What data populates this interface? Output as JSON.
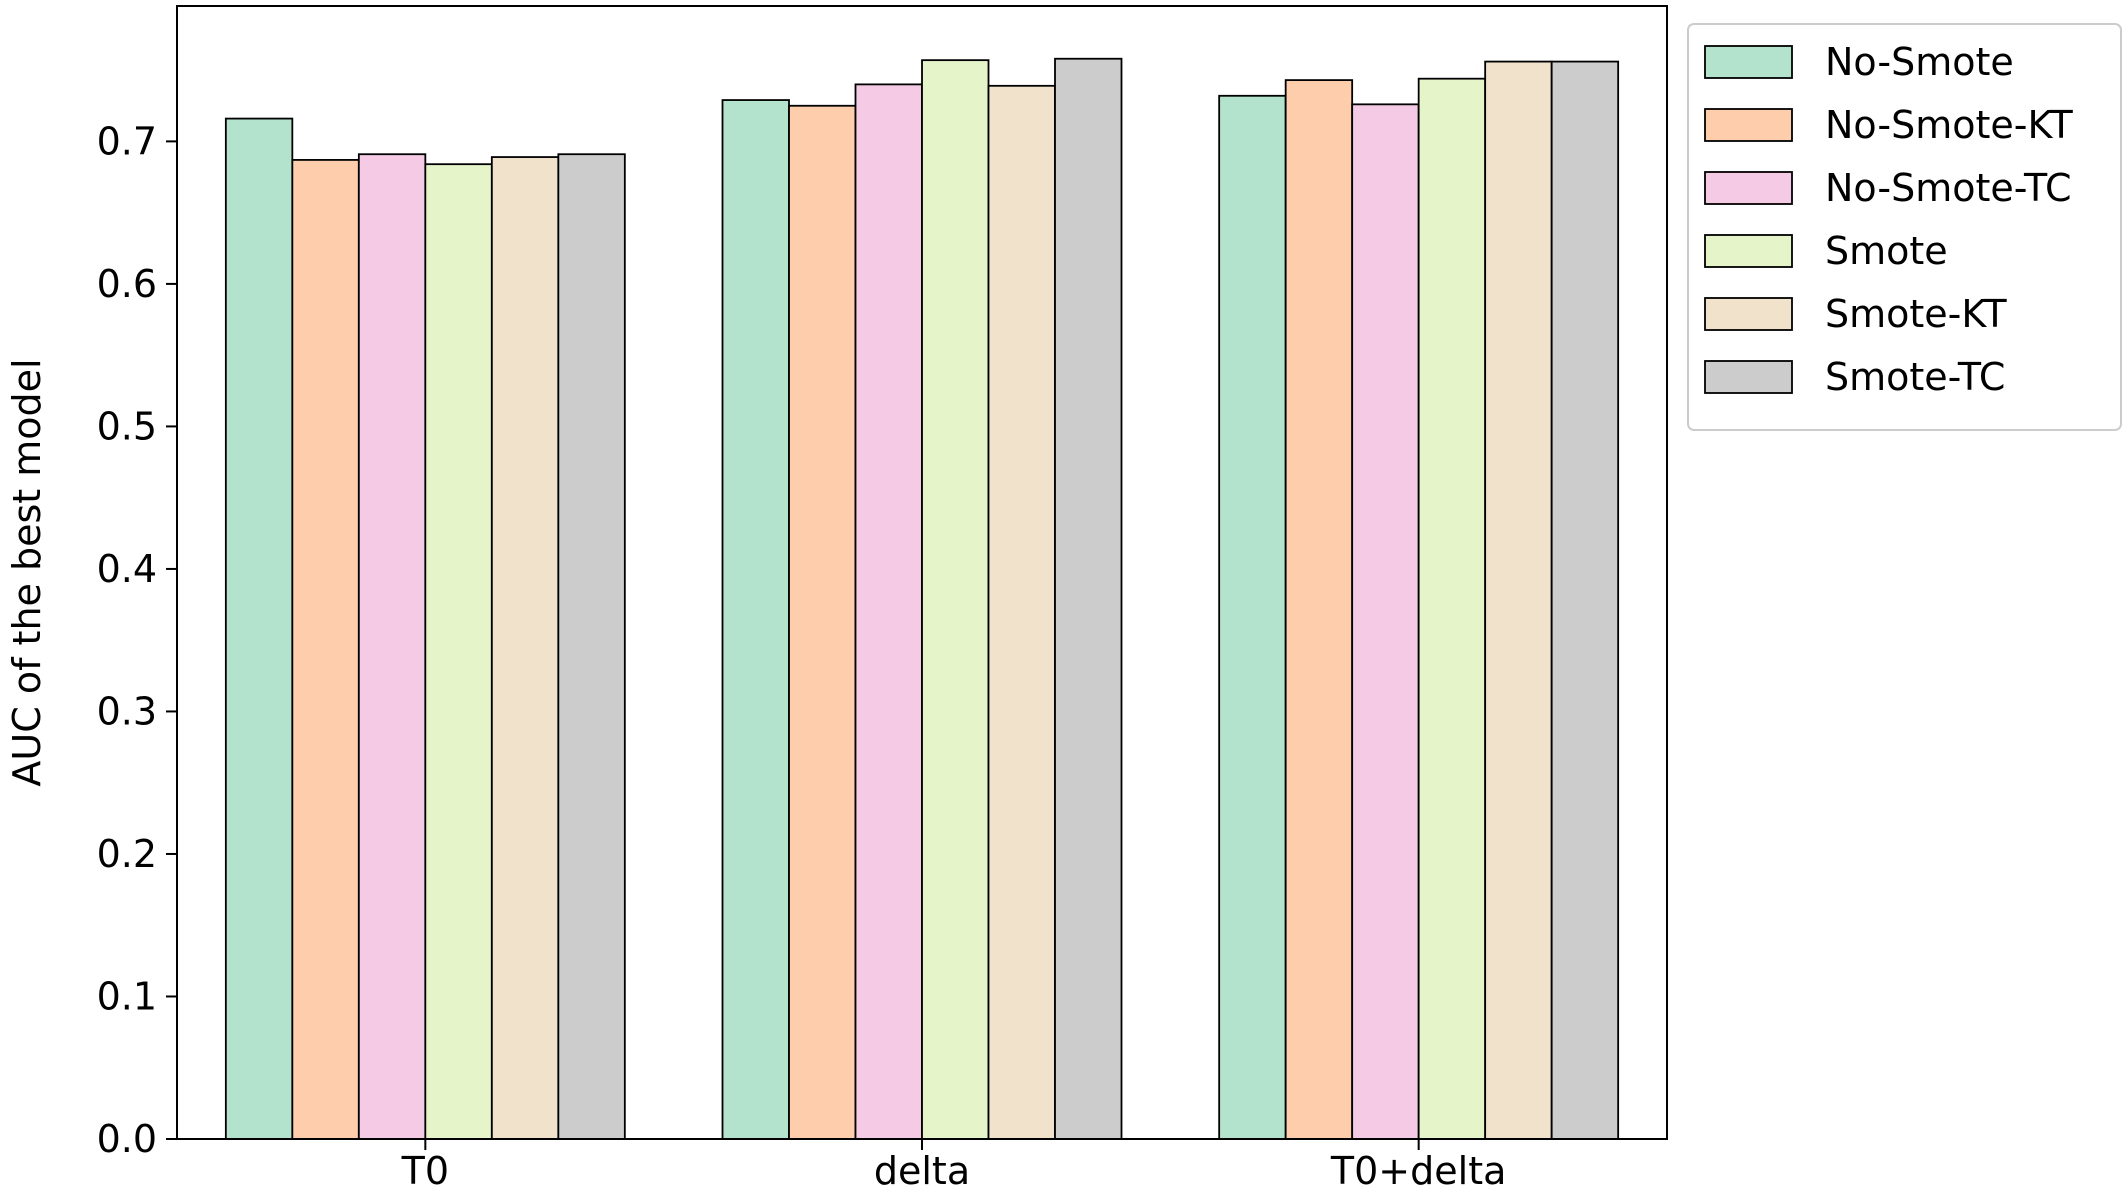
{
  "chart_data": {
    "type": "bar",
    "title": "",
    "xlabel": "",
    "ylabel": "AUC of the best model",
    "ylim": [
      0,
      0.795
    ],
    "yticks": [
      0.0,
      0.1,
      0.2,
      0.3,
      0.4,
      0.5,
      0.6,
      0.7
    ],
    "ytick_labels": [
      "0.0",
      "0.1",
      "0.2",
      "0.3",
      "0.4",
      "0.5",
      "0.6",
      "0.7"
    ],
    "categories": [
      "T0",
      "delta",
      "T0+delta"
    ],
    "grid": false,
    "legend_placement": "outside-top-right",
    "series": [
      {
        "name": "No-Smote",
        "color": "#b3e2cd",
        "values": [
          0.716,
          0.729,
          0.732
        ]
      },
      {
        "name": "No-Smote-KT",
        "color": "#fdcdac",
        "values": [
          0.687,
          0.725,
          0.743
        ]
      },
      {
        "name": "No-Smote-TC",
        "color": "#f4cae4",
        "values": [
          0.691,
          0.74,
          0.726
        ]
      },
      {
        "name": "Smote",
        "color": "#e6f5c9",
        "values": [
          0.684,
          0.757,
          0.744
        ]
      },
      {
        "name": "Smote-KT",
        "color": "#f1e2cc",
        "values": [
          0.689,
          0.739,
          0.756
        ]
      },
      {
        "name": "Smote-TC",
        "color": "#cccccc",
        "values": [
          0.691,
          0.758,
          0.756
        ]
      }
    ]
  }
}
